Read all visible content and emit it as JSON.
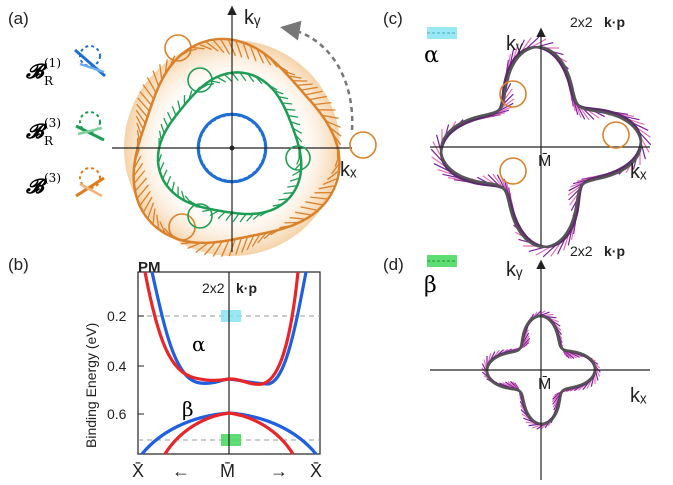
{
  "figure": {
    "panels": {
      "a": {
        "label": "(a)",
        "kx": "kₓ",
        "ky": "kᵧ",
        "legend": [
          {
            "sym": "𝓑",
            "sub": "R",
            "sup": "(1)",
            "color": "#1f6fd1"
          },
          {
            "sym": "𝓑",
            "sub": "R",
            "sup": "(3)",
            "color": "#1f9d55"
          },
          {
            "sym": "𝓑",
            "sub": "",
            "sup": "(3)",
            "color": "#e07b1d"
          }
        ]
      },
      "b": {
        "label": "(b)",
        "tag": "PM",
        "model": "2x2",
        "model_bold": "k·p",
        "ylabel": "Binding Energy (eV)",
        "yticks": [
          "0.2",
          "0.4",
          "0.6"
        ],
        "alpha": "α",
        "beta": "β",
        "xticks": [
          "X̄",
          "←",
          "M̄",
          "→",
          "X̄"
        ]
      },
      "c": {
        "label": "(c)",
        "model": "2x2",
        "model_bold": "k·p",
        "greek": "α",
        "kx": "kₓ",
        "ky": "kᵧ",
        "center": "M̄"
      },
      "d": {
        "label": "(d)",
        "model": "2x2",
        "model_bold": "k·p",
        "greek": "β",
        "kx": "kₓ",
        "ky": "kᵧ",
        "center": "M̄"
      }
    },
    "colors": {
      "blue": "#1f5fe0",
      "red": "#e8262a",
      "green": "#1f9d55",
      "orange": "#d9822b",
      "purple": "#7b1fa2",
      "pink": "#e56fb8",
      "cyan": "#7fe3f2",
      "lime": "#4cd964"
    }
  }
}
